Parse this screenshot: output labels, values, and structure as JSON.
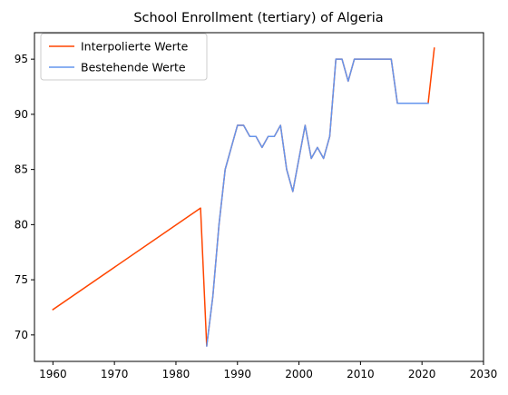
{
  "chart_data": {
    "type": "line",
    "title": "School Enrollment (tertiary) of Algeria",
    "xlabel": "",
    "ylabel": "",
    "xlim": [
      1957.0,
      2030.0
    ],
    "ylim": [
      67.6,
      97.4
    ],
    "x_ticks": [
      1960,
      1970,
      1980,
      1990,
      2000,
      2010,
      2020,
      2030
    ],
    "y_ticks": [
      70,
      75,
      80,
      85,
      90,
      95
    ],
    "grid": false,
    "legend_position": "top-left",
    "series": [
      {
        "name": "Interpolierte Werte",
        "color": "#ff4500",
        "x": [
          1960,
          1984,
          1985,
          1986,
          1987,
          1988,
          1989,
          1990,
          1991,
          1992,
          1993,
          1994,
          1995,
          1996,
          1997,
          1998,
          1999,
          2000,
          2001,
          2002,
          2003,
          2004,
          2005,
          2006,
          2007,
          2008,
          2009,
          2010,
          2011,
          2012,
          2013,
          2014,
          2015,
          2016,
          2017,
          2018,
          2019,
          2020,
          2021,
          2022
        ],
        "y": [
          72.3,
          81.5,
          69,
          73.5,
          80,
          85,
          87,
          89,
          89,
          88,
          88,
          87,
          88,
          88,
          89,
          85,
          83,
          86,
          89,
          86,
          87,
          86,
          88,
          95,
          95,
          93,
          95,
          95,
          95,
          95,
          95,
          95,
          95,
          91,
          91,
          91,
          91,
          91,
          91,
          96
        ]
      },
      {
        "name": "Bestehende Werte",
        "color": "#6495ed",
        "x": [
          1985,
          1986,
          1987,
          1988,
          1989,
          1990,
          1991,
          1992,
          1993,
          1994,
          1995,
          1996,
          1997,
          1998,
          1999,
          2000,
          2001,
          2002,
          2003,
          2004,
          2005,
          2006,
          2007,
          2008,
          2009,
          2010,
          2011,
          2012,
          2013,
          2014,
          2015,
          2016,
          2017,
          2018,
          2019,
          2020,
          2021
        ],
        "y": [
          69,
          73.5,
          80,
          85,
          87,
          89,
          89,
          88,
          88,
          87,
          88,
          88,
          89,
          85,
          83,
          86,
          89,
          86,
          87,
          86,
          88,
          95,
          95,
          93,
          95,
          95,
          95,
          95,
          95,
          95,
          95,
          91,
          91,
          91,
          91,
          91,
          91
        ]
      }
    ]
  }
}
